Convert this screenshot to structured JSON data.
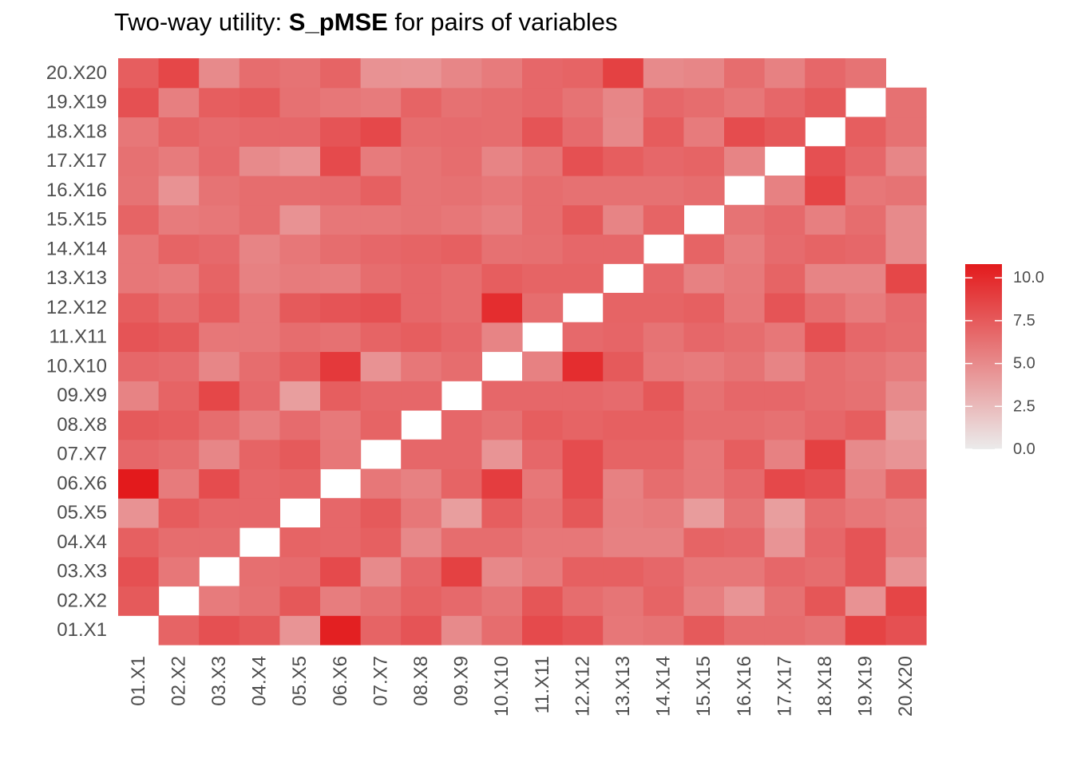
{
  "title": {
    "prefix": "Two-way utility: ",
    "bold": "S_pMSE",
    "suffix": " for pairs of variables"
  },
  "colors": {
    "low": "#ebebeb",
    "high": "#e31a1c",
    "background": "#ffffff"
  },
  "chart_data": {
    "type": "heatmap",
    "x_categories": [
      "01.X1",
      "02.X2",
      "03.X3",
      "04.X4",
      "05.X5",
      "06.X6",
      "07.X7",
      "08.X8",
      "09.X9",
      "10.X10",
      "11.X11",
      "12.X12",
      "13.X13",
      "14.X14",
      "15.X15",
      "16.X16",
      "17.X17",
      "18.X18",
      "19.X19",
      "20.X20"
    ],
    "y_categories": [
      "01.X1",
      "02.X2",
      "03.X3",
      "04.X4",
      "05.X5",
      "06.X6",
      "07.X7",
      "08.X8",
      "09.X9",
      "10.X10",
      "11.X11",
      "12.X12",
      "13.X13",
      "14.X14",
      "15.X15",
      "16.X16",
      "17.X17",
      "18.X18",
      "19.X19",
      "20.X20"
    ],
    "values": [
      [
        null,
        7.0,
        8.0,
        7.5,
        4.5,
        10.5,
        7.0,
        7.8,
        5.0,
        6.5,
        8.3,
        7.8,
        6.0,
        6.2,
        7.5,
        6.5,
        6.5,
        6.2,
        8.7,
        8.0
      ],
      [
        7.5,
        null,
        5.8,
        6.3,
        7.6,
        5.7,
        6.3,
        7.1,
        6.7,
        6.1,
        7.7,
        6.5,
        6.1,
        7.0,
        5.6,
        4.5,
        6.3,
        7.7,
        4.6,
        8.6
      ],
      [
        8.0,
        6.0,
        null,
        6.4,
        6.6,
        8.3,
        5.0,
        6.8,
        8.8,
        5.1,
        5.8,
        7.2,
        7.2,
        6.8,
        6.0,
        6.0,
        6.8,
        6.5,
        7.8,
        4.6
      ],
      [
        7.2,
        6.5,
        6.5,
        null,
        7.0,
        6.8,
        7.2,
        5.1,
        6.5,
        6.5,
        6.0,
        6.0,
        5.5,
        5.5,
        7.0,
        6.8,
        4.5,
        6.8,
        7.8,
        5.7
      ],
      [
        4.6,
        7.4,
        6.8,
        6.8,
        null,
        6.8,
        7.5,
        6.0,
        4.0,
        7.3,
        6.3,
        7.6,
        5.6,
        5.8,
        4.1,
        6.2,
        4.0,
        6.5,
        6.0,
        5.6
      ],
      [
        10.8,
        5.8,
        8.2,
        6.8,
        7.0,
        null,
        6.0,
        5.5,
        7.0,
        9.0,
        6.0,
        8.2,
        5.5,
        6.5,
        6.0,
        6.7,
        8.4,
        8.0,
        5.5,
        7.1
      ],
      [
        6.8,
        6.5,
        5.2,
        7.0,
        7.5,
        6.0,
        null,
        6.8,
        6.8,
        4.5,
        6.8,
        8.2,
        7.0,
        7.0,
        6.0,
        7.3,
        5.5,
        8.8,
        5.0,
        4.5
      ],
      [
        7.5,
        7.3,
        6.5,
        5.6,
        6.6,
        5.9,
        7.0,
        null,
        6.8,
        6.3,
        7.3,
        7.0,
        7.2,
        7.2,
        6.5,
        6.5,
        6.3,
        6.8,
        7.3,
        4.0
      ],
      [
        5.4,
        7.0,
        8.5,
        6.7,
        4.0,
        7.3,
        6.8,
        6.8,
        null,
        6.8,
        6.8,
        6.8,
        6.6,
        7.6,
        6.3,
        6.8,
        6.8,
        6.5,
        6.3,
        5.0
      ],
      [
        6.8,
        6.6,
        5.2,
        6.5,
        7.3,
        9.2,
        4.6,
        6.0,
        6.5,
        null,
        5.5,
        9.8,
        7.5,
        6.0,
        5.8,
        6.2,
        5.3,
        6.5,
        6.2,
        5.8
      ],
      [
        7.8,
        7.5,
        6.0,
        6.0,
        6.5,
        6.3,
        7.0,
        7.3,
        6.8,
        5.3,
        null,
        6.7,
        6.9,
        6.2,
        6.8,
        6.5,
        6.0,
        8.0,
        6.8,
        6.5
      ],
      [
        7.3,
        6.5,
        7.3,
        6.0,
        7.5,
        7.8,
        8.0,
        6.8,
        6.5,
        9.8,
        6.5,
        null,
        7.0,
        7.0,
        7.2,
        6.0,
        7.8,
        6.5,
        5.8,
        6.6
      ],
      [
        6.0,
        5.8,
        7.0,
        5.5,
        5.8,
        5.7,
        6.5,
        6.8,
        6.5,
        7.3,
        7.0,
        7.0,
        null,
        6.8,
        5.5,
        5.9,
        7.0,
        5.3,
        5.3,
        8.5
      ],
      [
        6.0,
        7.0,
        6.7,
        5.3,
        6.0,
        6.5,
        6.8,
        7.0,
        7.2,
        6.3,
        6.4,
        6.8,
        6.8,
        null,
        7.0,
        5.7,
        6.6,
        7.0,
        6.8,
        5.0
      ],
      [
        7.0,
        5.8,
        6.0,
        6.5,
        4.6,
        6.0,
        6.0,
        6.2,
        6.0,
        5.6,
        6.5,
        7.5,
        5.3,
        7.0,
        null,
        6.2,
        6.7,
        5.6,
        6.5,
        5.0
      ],
      [
        6.2,
        4.6,
        6.2,
        6.5,
        6.5,
        6.6,
        7.2,
        6.2,
        6.3,
        6.0,
        6.5,
        6.3,
        6.3,
        6.3,
        6.5,
        null,
        5.5,
        8.6,
        6.0,
        6.2
      ],
      [
        6.3,
        5.8,
        6.7,
        5.0,
        4.6,
        8.3,
        5.8,
        6.2,
        6.5,
        5.3,
        6.1,
        8.0,
        7.3,
        6.8,
        7.0,
        5.3,
        null,
        8.0,
        6.8,
        5.2
      ],
      [
        6.0,
        7.0,
        6.6,
        6.8,
        6.8,
        7.8,
        8.4,
        6.5,
        6.6,
        6.5,
        7.8,
        6.6,
        5.1,
        7.4,
        5.8,
        8.2,
        7.6,
        null,
        7.3,
        6.3
      ],
      [
        8.0,
        5.6,
        7.3,
        7.5,
        6.3,
        6.0,
        5.8,
        7.0,
        6.3,
        6.5,
        6.8,
        6.2,
        5.2,
        6.8,
        6.5,
        6.0,
        6.8,
        7.5,
        null,
        6.3
      ],
      [
        7.3,
        8.5,
        5.0,
        6.5,
        6.2,
        7.0,
        4.6,
        4.5,
        5.2,
        5.8,
        6.8,
        7.0,
        8.8,
        5.0,
        5.2,
        6.5,
        5.5,
        6.8,
        6.2,
        null
      ]
    ],
    "legend": {
      "ticks": [
        "0.0",
        "2.5",
        "5.0",
        "7.5",
        "10.0"
      ],
      "tick_values": [
        0.0,
        2.5,
        5.0,
        7.5,
        10.0
      ],
      "range": [
        0.0,
        10.8
      ],
      "placement": "right"
    },
    "xlabel": "",
    "ylabel": "",
    "grid": false
  }
}
